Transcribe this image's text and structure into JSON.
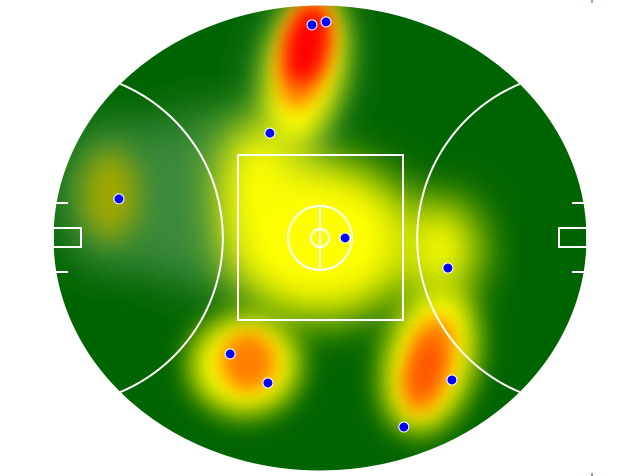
{
  "chart_data": {
    "type": "heatmap",
    "title": "",
    "xlabel": "",
    "ylabel": "",
    "xlim": [
      -80,
      80
    ],
    "ylim": [
      -70,
      70
    ],
    "grid": false,
    "legend": "none",
    "colormap": [
      "#006400",
      "#3a8a3a",
      "#ffff00",
      "#ff8000",
      "#ff0000"
    ],
    "marker_color": "#0000ff",
    "field_color": "#006400",
    "line_color": "#ffffff",
    "points": [
      {
        "x": -2.4,
        "y": 63.8
      },
      {
        "x": 1.8,
        "y": 64.7
      },
      {
        "x": -15.0,
        "y": 31.4
      },
      {
        "x": -60.2,
        "y": 11.7
      },
      {
        "x": 7.5,
        "y": 0.0
      },
      {
        "x": 38.3,
        "y": -9.0
      },
      {
        "x": -26.9,
        "y": -34.7
      },
      {
        "x": -15.6,
        "y": -43.4
      },
      {
        "x": 39.5,
        "y": -42.5
      },
      {
        "x": 25.1,
        "y": -56.6
      }
    ]
  }
}
